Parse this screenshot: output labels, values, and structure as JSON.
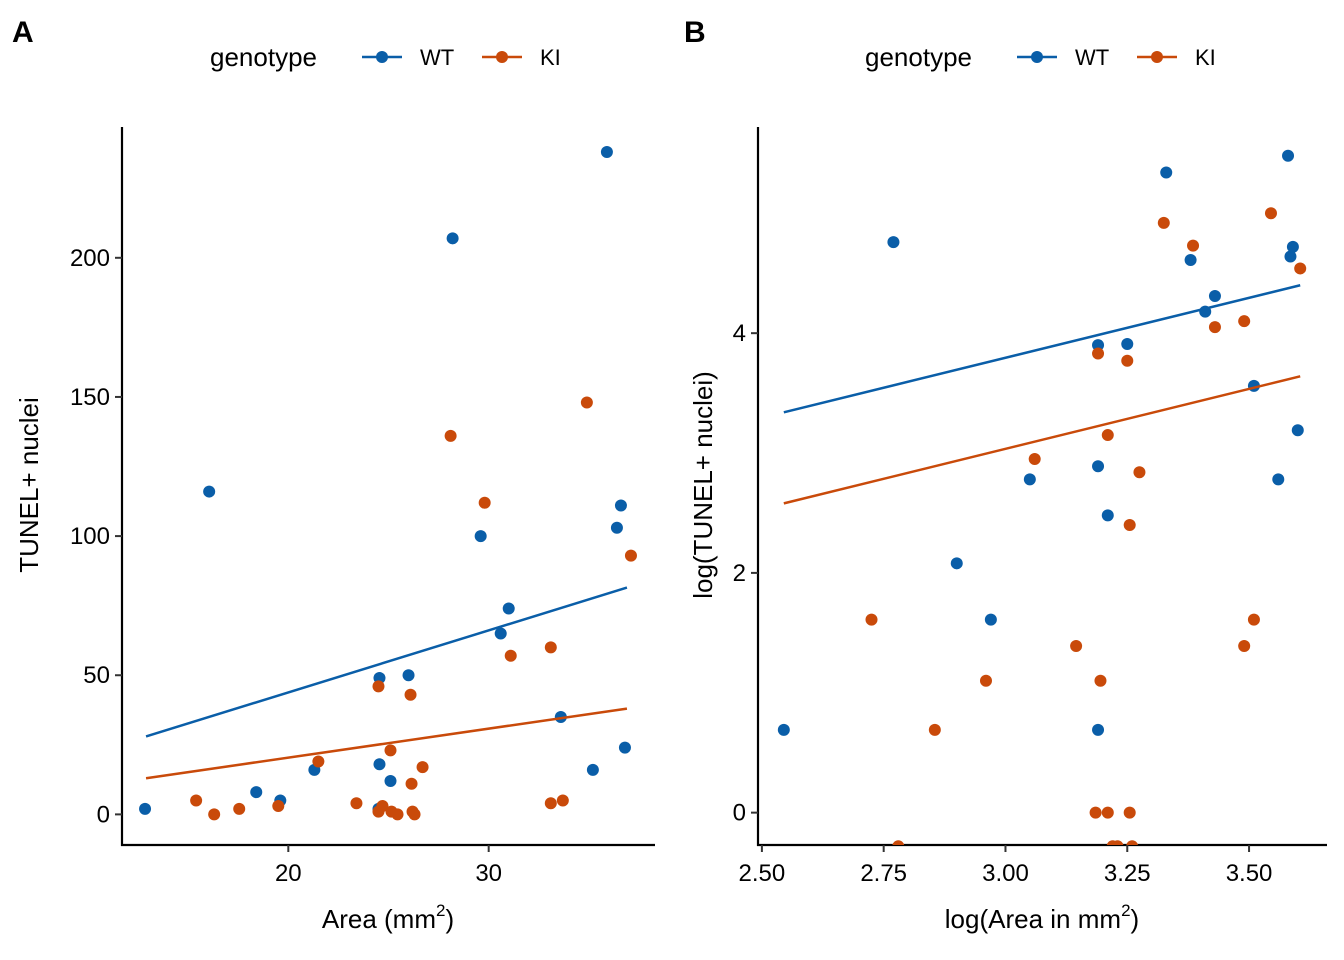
{
  "colors": {
    "WT": "#0A5EA8",
    "KI": "#C94A0A",
    "axis": "#000000"
  },
  "chart_data": [
    {
      "panel": "A",
      "type": "scatter",
      "title": "",
      "xlabel": "Area (mm",
      "xlabel_sup": "2",
      "xlabel_end": ")",
      "ylabel": "TUNEL+ nuclei",
      "xlim": [
        11.7,
        38.3
      ],
      "ylim": [
        -11,
        247
      ],
      "xticks": [
        20,
        30
      ],
      "xtick_labels": [
        "20",
        "30"
      ],
      "yticks": [
        0,
        50,
        100,
        150,
        200
      ],
      "ytick_labels": [
        "0",
        "50",
        "100",
        "150",
        "200"
      ],
      "grid": false,
      "legend": {
        "title": "genotype",
        "position": "top",
        "entries": [
          "WT",
          "KI"
        ]
      },
      "series": [
        {
          "name": "WT",
          "points": [
            [
              12.85,
              2
            ],
            [
              16.05,
              116
            ],
            [
              18.4,
              8
            ],
            [
              19.6,
              5
            ],
            [
              21.3,
              16
            ],
            [
              24.5,
              2
            ],
            [
              24.55,
              49
            ],
            [
              24.55,
              18
            ],
            [
              25.1,
              12
            ],
            [
              26.0,
              50
            ],
            [
              28.2,
              207
            ],
            [
              29.6,
              100
            ],
            [
              30.6,
              65
            ],
            [
              31.0,
              74
            ],
            [
              33.6,
              35
            ],
            [
              35.2,
              16
            ],
            [
              35.9,
              238
            ],
            [
              36.4,
              103
            ],
            [
              36.6,
              111
            ],
            [
              36.8,
              24
            ]
          ],
          "fit": [
            [
              12.9,
              28
            ],
            [
              36.9,
              81.5
            ]
          ]
        },
        {
          "name": "KI",
          "points": [
            [
              15.4,
              5
            ],
            [
              16.3,
              0
            ],
            [
              17.55,
              2
            ],
            [
              19.5,
              3
            ],
            [
              21.5,
              19
            ],
            [
              23.4,
              4
            ],
            [
              24.5,
              46
            ],
            [
              24.5,
              1
            ],
            [
              24.7,
              3
            ],
            [
              25.1,
              23
            ],
            [
              25.15,
              1
            ],
            [
              25.45,
              0
            ],
            [
              26.15,
              11
            ],
            [
              26.1,
              43
            ],
            [
              26.2,
              1
            ],
            [
              26.3,
              0
            ],
            [
              26.7,
              17
            ],
            [
              28.1,
              136
            ],
            [
              29.8,
              112
            ],
            [
              31.1,
              57
            ],
            [
              33.1,
              60
            ],
            [
              33.1,
              4
            ],
            [
              33.7,
              5
            ],
            [
              34.9,
              148
            ],
            [
              37.1,
              93
            ]
          ],
          "fit": [
            [
              12.9,
              13
            ],
            [
              36.9,
              38
            ]
          ]
        }
      ]
    },
    {
      "panel": "B",
      "type": "scatter",
      "title": "",
      "xlabel": "log(Area in mm",
      "xlabel_sup": "2",
      "xlabel_end": ")",
      "ylabel": "log(TUNEL+ nuclei)",
      "xlim": [
        2.492,
        3.66
      ],
      "ylim": [
        -0.27,
        5.72
      ],
      "xticks": [
        2.5,
        2.75,
        3.0,
        3.25,
        3.5
      ],
      "xtick_labels": [
        "2.50",
        "2.75",
        "3.00",
        "3.25",
        "3.50"
      ],
      "yticks": [
        0,
        2,
        4
      ],
      "ytick_labels": [
        "0",
        "2",
        "4"
      ],
      "grid": false,
      "legend": {
        "title": "genotype",
        "position": "top",
        "entries": [
          "WT",
          "KI"
        ]
      },
      "series": [
        {
          "name": "WT",
          "points": [
            [
              2.545,
              0.69
            ],
            [
              2.77,
              4.76
            ],
            [
              2.9,
              2.08
            ],
            [
              2.97,
              1.61
            ],
            [
              3.05,
              2.78
            ],
            [
              3.19,
              0.69
            ],
            [
              3.19,
              3.9
            ],
            [
              3.19,
              2.89
            ],
            [
              3.21,
              2.48
            ],
            [
              3.25,
              3.91
            ],
            [
              3.33,
              5.34
            ],
            [
              3.38,
              4.61
            ],
            [
              3.41,
              4.18
            ],
            [
              3.43,
              4.31
            ],
            [
              3.51,
              3.56
            ],
            [
              3.56,
              2.78
            ],
            [
              3.58,
              5.48
            ],
            [
              3.585,
              4.64
            ],
            [
              3.59,
              4.72
            ],
            [
              3.6,
              3.19
            ]
          ],
          "fit": [
            [
              2.545,
              3.34
            ],
            [
              3.605,
              4.4
            ]
          ]
        },
        {
          "name": "KI",
          "points": [
            [
              2.725,
              1.61
            ],
            [
              2.78,
              -0.28
            ],
            [
              2.855,
              0.69
            ],
            [
              2.96,
              1.1
            ],
            [
              3.06,
              2.95
            ],
            [
              3.145,
              1.39
            ],
            [
              3.185,
              0
            ],
            [
              3.19,
              3.83
            ],
            [
              3.195,
              1.1
            ],
            [
              3.21,
              0
            ],
            [
              3.21,
              3.15
            ],
            [
              3.22,
              -0.28
            ],
            [
              3.23,
              -0.28
            ],
            [
              3.25,
              3.77
            ],
            [
              3.255,
              2.4
            ],
            [
              3.255,
              0
            ],
            [
              3.26,
              -0.28
            ],
            [
              3.275,
              2.84
            ],
            [
              3.325,
              4.92
            ],
            [
              3.385,
              4.73
            ],
            [
              3.43,
              4.05
            ],
            [
              3.49,
              4.1
            ],
            [
              3.49,
              1.39
            ],
            [
              3.51,
              1.61
            ],
            [
              3.545,
              5.0
            ],
            [
              3.605,
              4.54
            ]
          ],
          "fit": [
            [
              2.545,
              2.58
            ],
            [
              3.605,
              3.64
            ]
          ]
        }
      ]
    }
  ]
}
